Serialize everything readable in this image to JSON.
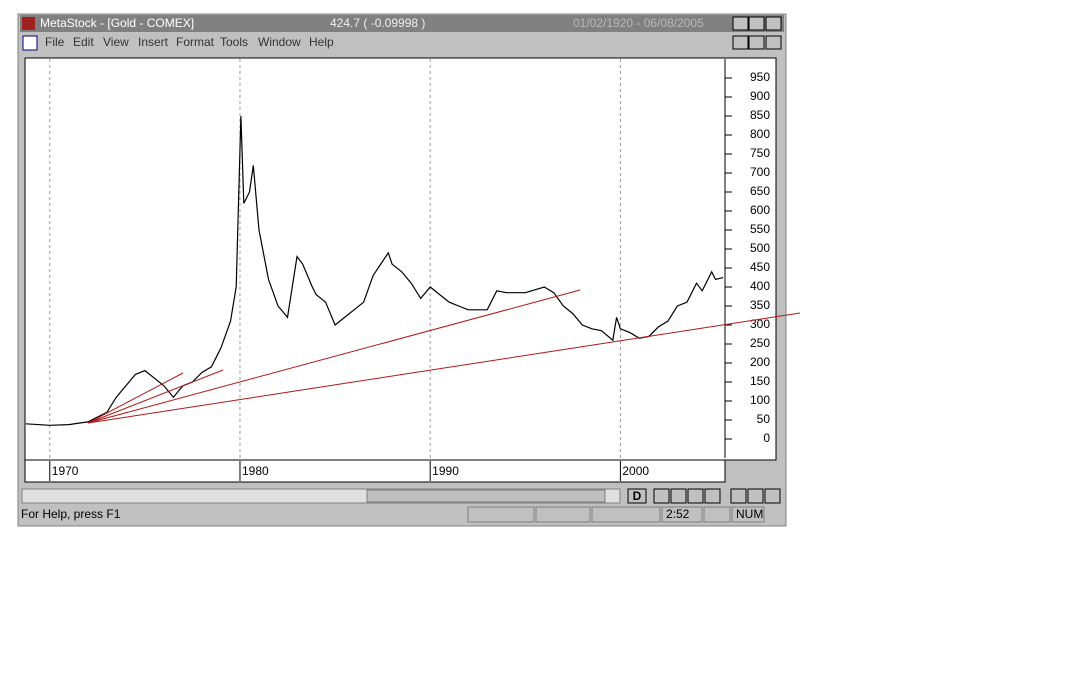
{
  "window": {
    "title": "MetaStock - [Gold - COMEX]",
    "quote": "424.7 ( -0.09998 )",
    "date_range": "01/02/1920 - 06/08/2005"
  },
  "menu": [
    "File",
    "Edit",
    "View",
    "Insert",
    "Format",
    "Tools",
    "Window",
    "Help"
  ],
  "chart_data": {
    "type": "line",
    "color": "#000000",
    "grid": true,
    "x": [
      1968.75,
      1970,
      1971,
      1972,
      1973,
      1973.5,
      1974,
      1974.5,
      1975,
      1975.5,
      1976,
      1976.5,
      1977,
      1977.5,
      1978,
      1978.5,
      1979,
      1979.5,
      1979.8,
      1980.05,
      1980.2,
      1980.5,
      1980.7,
      1981,
      1981.5,
      1982,
      1982.5,
      1983,
      1983.3,
      1983.8,
      1984,
      1984.5,
      1985,
      1985.5,
      1986,
      1986.5,
      1987,
      1987.8,
      1988,
      1988.5,
      1989,
      1989.5,
      1990,
      1990.5,
      1991,
      1991.5,
      1992,
      1993,
      1993.5,
      1994,
      1995,
      1996,
      1996.5,
      1997,
      1997.5,
      1998,
      1998.5,
      1999,
      1999.6,
      1999.8,
      2000,
      2000.5,
      2001,
      2001.5,
      2002,
      2002.5,
      2003,
      2003.5,
      2004,
      2004.3,
      2004.8,
      2005,
      2005.4
    ],
    "values": [
      40,
      36,
      38,
      45,
      70,
      110,
      140,
      170,
      180,
      160,
      140,
      110,
      140,
      150,
      175,
      190,
      240,
      310,
      400,
      850,
      620,
      650,
      720,
      550,
      420,
      350,
      320,
      480,
      460,
      400,
      380,
      360,
      300,
      320,
      340,
      360,
      430,
      490,
      460,
      440,
      410,
      370,
      400,
      380,
      360,
      350,
      340,
      340,
      390,
      385,
      385,
      400,
      385,
      350,
      330,
      300,
      290,
      285,
      260,
      320,
      290,
      280,
      265,
      270,
      295,
      310,
      350,
      360,
      410,
      390,
      440,
      420,
      424.7
    ],
    "xlim": [
      1968.75,
      2005.5
    ],
    "xticks": [
      1970,
      1980,
      1990,
      2000
    ],
    "ylim": [
      -50,
      1000
    ],
    "yticks": [
      0,
      50,
      100,
      150,
      200,
      250,
      300,
      350,
      400,
      450,
      500,
      550,
      600,
      650,
      700,
      750,
      800,
      850,
      900,
      950
    ]
  },
  "periodicity_button": "D",
  "status": {
    "help": "For Help, press F1",
    "time": "2:52",
    "num": "NUM"
  }
}
